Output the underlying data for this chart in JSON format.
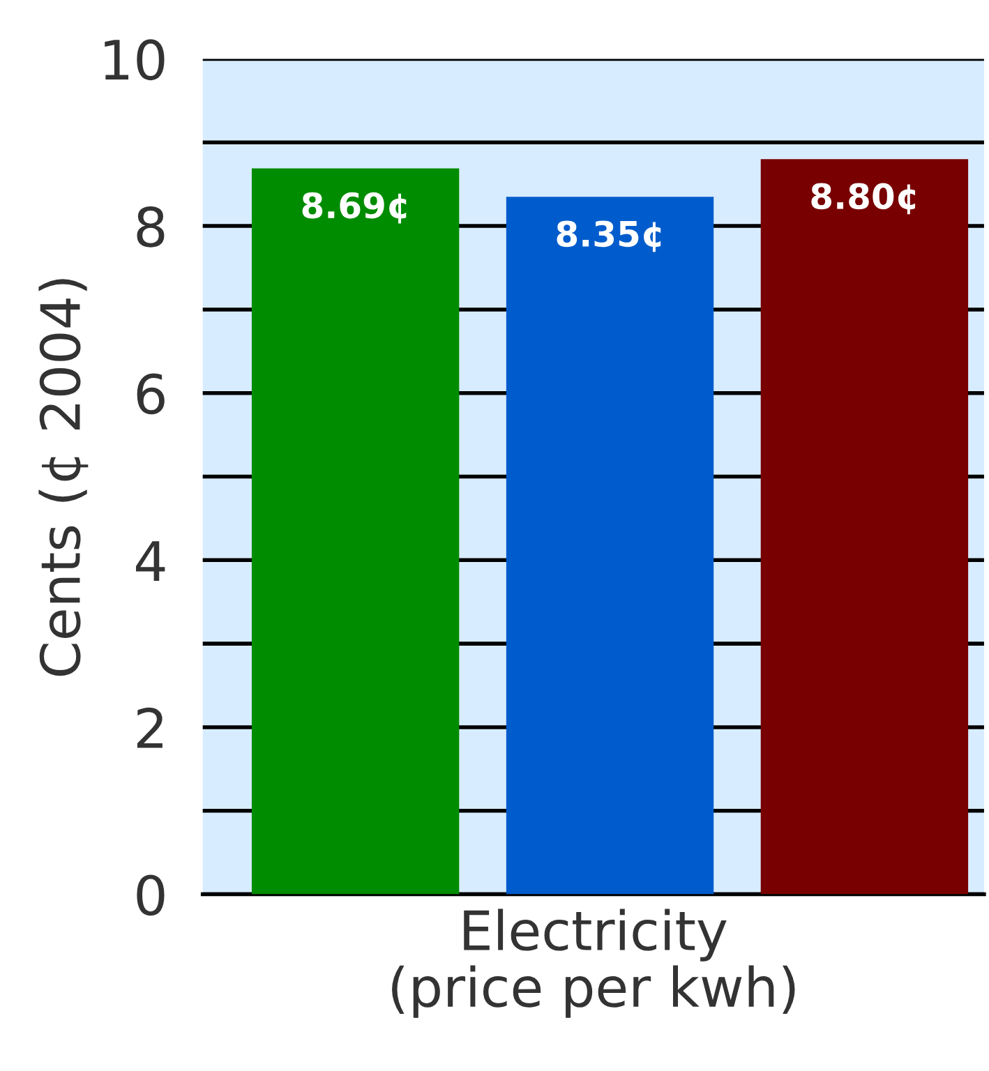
{
  "chart_data": {
    "type": "bar",
    "xlabel": "Electricity\n(price per kwh)",
    "ylabel": "Cents (¢ 2004)",
    "categories": [
      null,
      null,
      null
    ],
    "values": [
      8.69,
      8.35,
      8.8
    ],
    "colors": [
      "#008c00",
      "#005ccc",
      "#780000"
    ],
    "value_labels": [
      "8.69¢",
      "8.35¢",
      "8.80¢"
    ],
    "ylim": [
      0,
      10
    ],
    "yticks": [
      0,
      {
        "value": 1,
        "label": null
      },
      2,
      {
        "value": 3,
        "label": null
      },
      4,
      {
        "value": 5,
        "label": null
      },
      6,
      {
        "value": 7,
        "label": null
      },
      8,
      {
        "value": 9,
        "label": null
      },
      10
    ],
    "grid": "y"
  }
}
